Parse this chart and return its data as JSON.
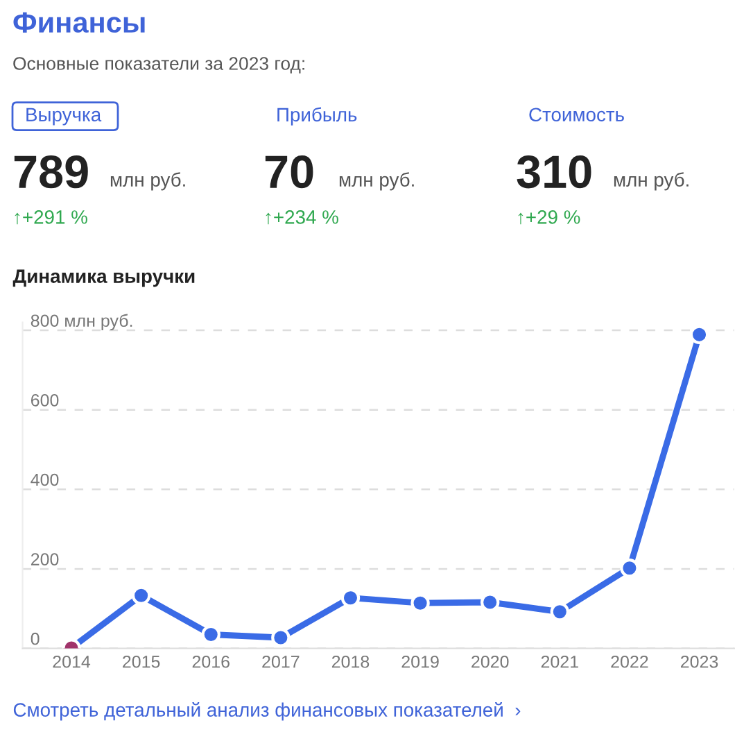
{
  "chart_data": [
    {
      "type": "other",
      "title": "Финансы",
      "subtitle": "Основные показатели за 2023 год:",
      "annotations": [
        "Выручка",
        "789",
        "млн руб.",
        "↑+291 %",
        "Прибыль",
        "70",
        "млн руб.",
        "↑+234 %",
        "Стоимость",
        "310",
        "млн руб.",
        "↑+29 %"
      ]
    },
    {
      "type": "line",
      "title": "Динамика выручки",
      "categories": [
        "2014",
        "2015",
        "2016",
        "2017",
        "2018",
        "2019",
        "2020",
        "2021",
        "2022",
        "2023"
      ],
      "series": [
        {
          "color": "#3a6be6",
          "colors": [
            "#a0336a",
            "#3a6be6",
            "#3a6be6",
            "#3a6be6",
            "#3a6be6",
            "#3a6be6",
            "#3a6be6",
            "#3a6be6",
            "#3a6be6",
            "#3a6be6"
          ],
          "values": [
            1,
            133,
            35,
            27,
            127,
            114,
            116,
            92,
            202,
            789
          ]
        }
      ],
      "ylim": [
        0,
        820
      ],
      "yticks": [
        0,
        200,
        400,
        600,
        {
          "value": 800,
          "label": "800 млн руб."
        }
      ],
      "grid": "y",
      "marker": "circle",
      "line_style": "solid",
      "legend": false,
      "annotations": [
        "Смотреть детальный анализ финансовых показателей  ›"
      ]
    }
  ]
}
